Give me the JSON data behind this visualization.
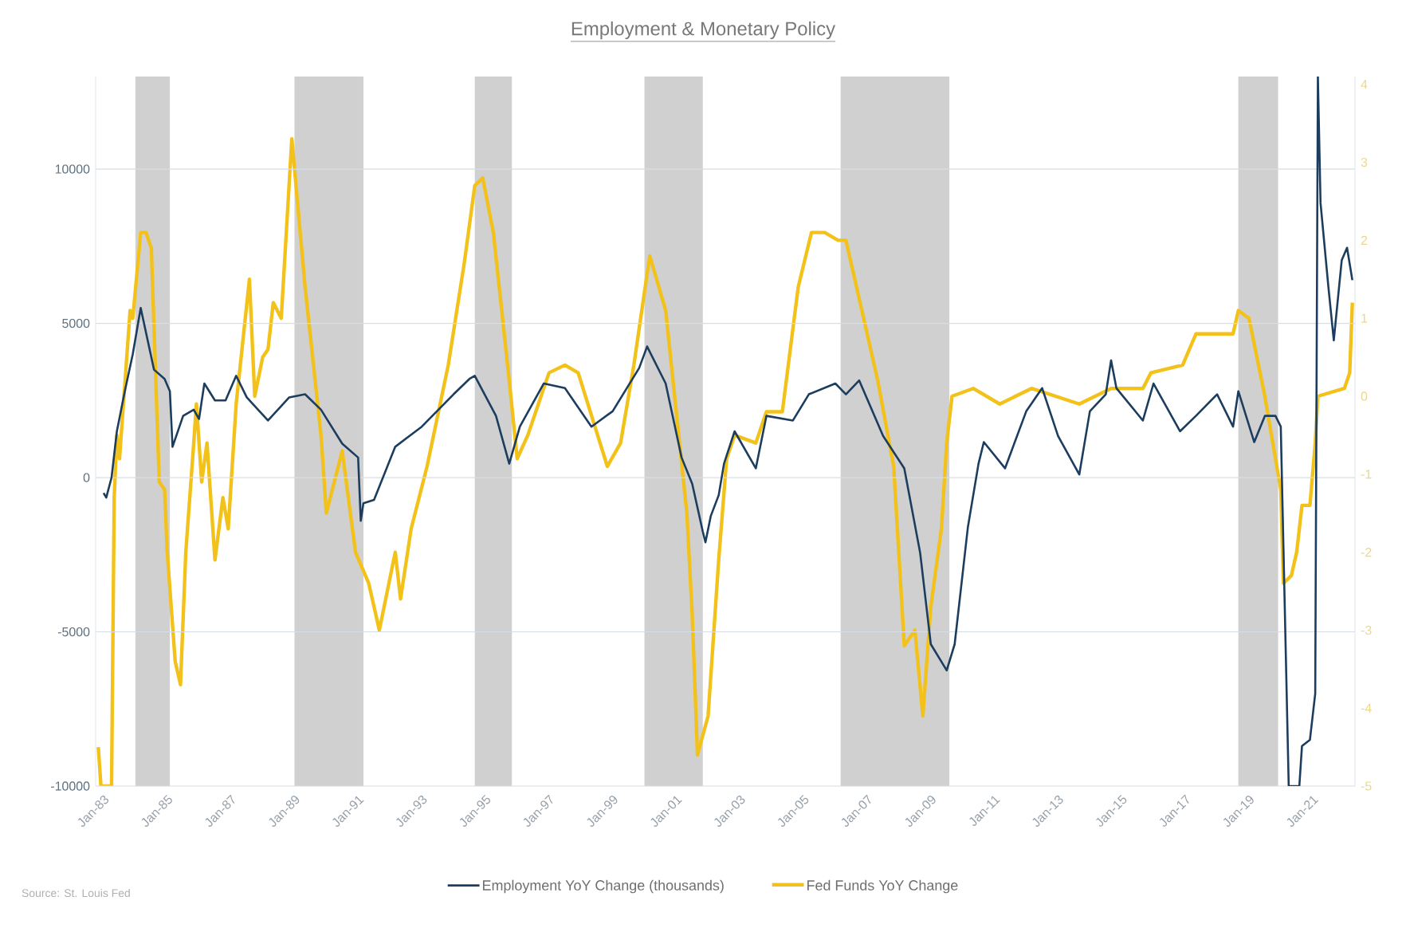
{
  "chart_data": {
    "type": "line",
    "title": "Employment & Monetary Policy",
    "annotations": [
      "Source: St. Louis Fed"
    ],
    "xlim": [
      "1982-10",
      "2022-05"
    ],
    "xticks": [
      {
        "value": "1983-01",
        "label": "Jan-83"
      },
      {
        "value": "1985-01",
        "label": "Jan-85"
      },
      {
        "value": "1987-01",
        "label": "Jan-87"
      },
      {
        "value": "1989-01",
        "label": "Jan-89"
      },
      {
        "value": "1991-01",
        "label": "Jan-91"
      },
      {
        "value": "1993-01",
        "label": "Jan-93"
      },
      {
        "value": "1995-01",
        "label": "Jan-95"
      },
      {
        "value": "1997-01",
        "label": "Jan-97"
      },
      {
        "value": "1999-01",
        "label": "Jan-99"
      },
      {
        "value": "2001-01",
        "label": "Jan-01"
      },
      {
        "value": "2003-01",
        "label": "Jan-03"
      },
      {
        "value": "2005-01",
        "label": "Jan-05"
      },
      {
        "value": "2007-01",
        "label": "Jan-07"
      },
      {
        "value": "2009-01",
        "label": "Jan-09"
      },
      {
        "value": "2011-01",
        "label": "Jan-11"
      },
      {
        "value": "2013-01",
        "label": "Jan-13"
      },
      {
        "value": "2015-01",
        "label": "Jan-15"
      },
      {
        "value": "2017-01",
        "label": "Jan-17"
      },
      {
        "value": "2019-01",
        "label": "Jan-19"
      },
      {
        "value": "2021-01",
        "label": "Jan-21"
      }
    ],
    "ylim": [
      -10000,
      13000
    ],
    "yticks": [
      -10000,
      -5000,
      0,
      5000,
      10000
    ],
    "y2lim": [
      -5,
      4.1
    ],
    "y2ticks": [
      -5,
      -4,
      -3,
      -2,
      -1,
      0,
      1,
      2,
      3,
      4
    ],
    "grid": "y",
    "legend": "bottom",
    "bands": [
      {
        "axis": "x",
        "from": "1984-01",
        "to": "1985-02",
        "color": "#d0d0d0"
      },
      {
        "axis": "x",
        "from": "1989-01",
        "to": "1991-03",
        "color": "#d0d0d0"
      },
      {
        "axis": "x",
        "from": "1994-09",
        "to": "1995-11",
        "color": "#d0d0d0"
      },
      {
        "axis": "x",
        "from": "2000-01",
        "to": "2001-11",
        "color": "#d0d0d0"
      },
      {
        "axis": "x",
        "from": "2006-03",
        "to": "2009-08",
        "color": "#d0d0d0"
      },
      {
        "axis": "x",
        "from": "2018-09",
        "to": "2019-12",
        "color": "#d0d0d0"
      }
    ],
    "series": [
      {
        "name": "Employment YoY Change (thousands)",
        "color": "#1c3d5e",
        "axis": "y",
        "x": [
          "1983-01",
          "1983-02",
          "1983-04",
          "1983-06",
          "1983-09",
          "1983-12",
          "1984-03",
          "1984-05",
          "1984-08",
          "1984-12",
          "1985-02",
          "1985-03",
          "1985-07",
          "1985-11",
          "1986-01",
          "1986-03",
          "1986-07",
          "1986-11",
          "1987-03",
          "1987-07",
          "1988-03",
          "1988-11",
          "1989-05",
          "1989-11",
          "1990-07",
          "1991-01",
          "1991-02",
          "1991-03",
          "1991-07",
          "1992-03",
          "1993-01",
          "1994-01",
          "1994-07",
          "1994-09",
          "1995-05",
          "1995-10",
          "1996-02",
          "1996-11",
          "1997-07",
          "1998-05",
          "1999-01",
          "1999-11",
          "2000-02",
          "2000-09",
          "2001-03",
          "2001-07",
          "2001-11",
          "2001-12",
          "2002-02",
          "2002-05",
          "2002-07",
          "2002-11",
          "2003-07",
          "2003-11",
          "2004-09",
          "2005-03",
          "2006-01",
          "2006-05",
          "2006-10",
          "2007-07",
          "2008-03",
          "2008-09",
          "2009-01",
          "2009-07",
          "2009-10",
          "2010-03",
          "2010-07",
          "2010-09",
          "2011-05",
          "2012-01",
          "2012-07",
          "2013-01",
          "2013-09",
          "2014-01",
          "2014-07",
          "2014-09",
          "2014-11",
          "2015-09",
          "2016-01",
          "2016-11",
          "2017-05",
          "2018-01",
          "2018-07",
          "2018-09",
          "2019-03",
          "2019-07",
          "2019-11",
          "2020-01",
          "2020-04",
          "2020-08",
          "2020-09",
          "2020-12",
          "2021-02",
          "2021-03",
          "2021-04",
          "2021-07",
          "2021-09",
          "2021-12",
          "2022-02",
          "2022-04"
        ],
        "values": [
          -500,
          -650,
          0,
          1500,
          2800,
          4000,
          5500,
          4700,
          3500,
          3200,
          2800,
          1000,
          2000,
          2200,
          1900,
          3050,
          2500,
          2500,
          3300,
          2600,
          1850,
          2600,
          2700,
          2200,
          1100,
          650,
          -1400,
          -830,
          -720,
          1000,
          1650,
          2700,
          3200,
          3300,
          2000,
          450,
          1650,
          3050,
          2900,
          1650,
          2150,
          3550,
          4250,
          3050,
          650,
          -200,
          -1750,
          -2100,
          -1250,
          -570,
          450,
          1500,
          300,
          2000,
          1850,
          2700,
          3050,
          2700,
          3150,
          1350,
          300,
          -2450,
          -5400,
          -6250,
          -5400,
          -1600,
          450,
          1150,
          300,
          2150,
          2900,
          1350,
          100,
          2150,
          2700,
          3800,
          2900,
          1850,
          3050,
          1500,
          2000,
          2700,
          1650,
          2800,
          1150,
          2000,
          2000,
          1650,
          -10000,
          -10000,
          -8700,
          -8500,
          -7000,
          13000,
          8900,
          6150,
          4450,
          7050,
          7450,
          6400
        ]
      },
      {
        "name": "Fed Funds YoY Change",
        "color": "#f3c21a",
        "axis": "y2",
        "x": [
          "1982-11",
          "1982-12",
          "1983-04",
          "1983-05",
          "1983-06",
          "1983-07",
          "1983-11",
          "1983-12",
          "1984-03",
          "1984-05",
          "1984-07",
          "1984-10",
          "1984-12",
          "1985-01",
          "1985-04",
          "1985-06",
          "1985-08",
          "1985-11",
          "1985-12",
          "1986-02",
          "1986-04",
          "1986-07",
          "1986-10",
          "1986-12",
          "1987-03",
          "1987-08",
          "1987-10",
          "1988-01",
          "1988-03",
          "1988-05",
          "1988-08",
          "1988-12",
          "1989-05",
          "1989-11",
          "1990-01",
          "1990-07",
          "1990-12",
          "1991-05",
          "1991-09",
          "1992-03",
          "1992-05",
          "1992-09",
          "1993-03",
          "1993-11",
          "1994-05",
          "1994-09",
          "1994-12",
          "1995-04",
          "1995-10",
          "1996-01",
          "1996-05",
          "1997-01",
          "1997-07",
          "1997-12",
          "1998-11",
          "1999-04",
          "1999-09",
          "2000-03",
          "2000-09",
          "2001-05",
          "2001-07",
          "2001-09",
          "2002-01",
          "2002-05",
          "2002-08",
          "2002-11",
          "2003-07",
          "2003-11",
          "2004-05",
          "2004-11",
          "2005-04",
          "2005-09",
          "2006-02",
          "2006-05",
          "2007-05",
          "2007-11",
          "2008-03",
          "2008-07",
          "2008-10",
          "2009-01",
          "2009-05",
          "2009-07",
          "2009-09",
          "2010-05",
          "2011-03",
          "2012-03",
          "2013-09",
          "2014-09",
          "2015-09",
          "2015-12",
          "2016-12",
          "2017-05",
          "2018-07",
          "2018-09",
          "2019-01",
          "2019-07",
          "2019-11",
          "2020-01",
          "2020-02",
          "2020-05",
          "2020-07",
          "2020-09",
          "2020-12",
          "2021-02",
          "2021-03",
          "2022-01",
          "2022-03",
          "2022-04"
        ],
        "values": [
          -4.5,
          -5,
          -5,
          -1.3,
          -0.5,
          -0.8,
          1.1,
          1.0,
          2.1,
          2.1,
          1.9,
          -1.1,
          -1.2,
          -2.0,
          -3.4,
          -3.7,
          -2.0,
          -0.6,
          -0.1,
          -1.1,
          -0.6,
          -2.1,
          -1.3,
          -1.7,
          -0.1,
          1.5,
          0.0,
          0.5,
          0.6,
          1.2,
          1.0,
          3.3,
          1.4,
          -0.5,
          -1.5,
          -0.7,
          -2.0,
          -2.4,
          -3.0,
          -2.0,
          -2.6,
          -1.7,
          -0.9,
          0.4,
          1.7,
          2.7,
          2.8,
          2.1,
          0.2,
          -0.8,
          -0.5,
          0.3,
          0.4,
          0.3,
          -0.9,
          -0.6,
          0.4,
          1.8,
          1.1,
          -1.5,
          -2.8,
          -4.6,
          -4.1,
          -2.1,
          -0.8,
          -0.5,
          -0.6,
          -0.2,
          -0.2,
          1.4,
          2.1,
          2.1,
          2.0,
          2.0,
          0.2,
          -0.9,
          -3.2,
          -3.0,
          -4.1,
          -2.7,
          -1.7,
          -0.6,
          0.0,
          0.1,
          -0.1,
          0.1,
          -0.1,
          0.1,
          0.1,
          0.3,
          0.4,
          0.8,
          0.8,
          1.1,
          1.0,
          0.0,
          -0.8,
          -1.2,
          -2.4,
          -2.3,
          -2.0,
          -1.4,
          -1.4,
          -0.6,
          0.0,
          0.1,
          0.3,
          1.2
        ]
      }
    ]
  }
}
